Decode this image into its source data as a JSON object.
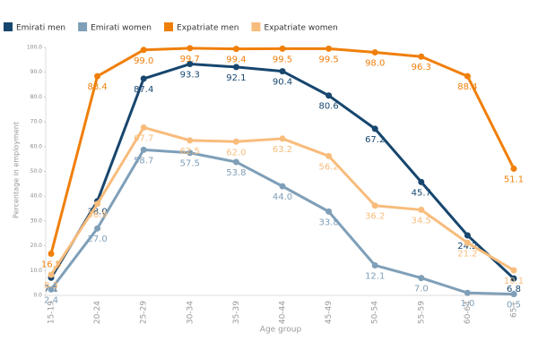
{
  "chart_data": {
    "type": "line",
    "x_label": "Age group",
    "y_label": "Percentage in employment",
    "categories": [
      "15-19",
      "20-24",
      "25-29",
      "30-34",
      "35-39",
      "40-44",
      "45-49",
      "50-54",
      "55-59",
      "60-64",
      "65+"
    ],
    "ylim": [
      0,
      100
    ],
    "yticks": [
      {
        "value": 0,
        "label": "0.0"
      },
      {
        "value": 10,
        "label": "10.0"
      },
      {
        "value": 20,
        "label": "20.0"
      },
      {
        "value": 30,
        "label": "30.0"
      },
      {
        "value": 40,
        "label": "40.0"
      },
      {
        "value": 50,
        "label": "50.0"
      },
      {
        "value": 60,
        "label": "60.0"
      },
      {
        "value": 70,
        "label": "70.0"
      },
      {
        "value": 80,
        "label": "80.0"
      },
      {
        "value": 90,
        "label": "90.0"
      },
      {
        "value": 100,
        "label": "100.0"
      }
    ],
    "grid": false,
    "legend": "top-left",
    "series": [
      {
        "name": "Emirati men",
        "color": "#17466e",
        "values": [
          7.1,
          38,
          87.4,
          93.3,
          92.1,
          90.4,
          80.6,
          67.2,
          45.7,
          24.2,
          6.8
        ],
        "value_labels": [
          "7.1",
          "38.0",
          "87.4",
          "93.3",
          "92.1",
          "90.4",
          "80.6",
          "67.2",
          "45.7",
          "24.2",
          "6.8"
        ]
      },
      {
        "name": "Emirati women",
        "color": "#7f9fb8",
        "values": [
          2.4,
          27,
          58.7,
          57.5,
          53.8,
          44,
          33.8,
          12.1,
          7,
          1,
          0.5
        ],
        "value_labels": [
          "2.4",
          "27.0",
          "58.7",
          "57.5",
          "53.8",
          "44.0",
          "33.8",
          "12.1",
          "7.0",
          "1.0",
          "0.5"
        ]
      },
      {
        "name": "Expatriate men",
        "color": "#f07f0a",
        "values": [
          16.8,
          88.4,
          99,
          99.7,
          99.4,
          99.5,
          99.5,
          98,
          96.3,
          88.4,
          51.1
        ],
        "value_labels": [
          "16.8",
          "88.4",
          "99.0",
          "99.7",
          "99.4",
          "99.5",
          "99.5",
          "98.0",
          "96.3",
          "88.4",
          "51.1"
        ]
      },
      {
        "name": "Expatriate women",
        "color": "#f8bc7c",
        "values": [
          8.3,
          36.9,
          67.7,
          62.5,
          62,
          63.2,
          56.2,
          36.2,
          34.5,
          21.2,
          10.1
        ],
        "value_labels": [
          "8.3",
          "36.9",
          "67.7",
          "62.5",
          "62.0",
          "63.2",
          "56.2",
          "36.2",
          "34.5",
          "21.2",
          "10.1"
        ]
      }
    ]
  }
}
